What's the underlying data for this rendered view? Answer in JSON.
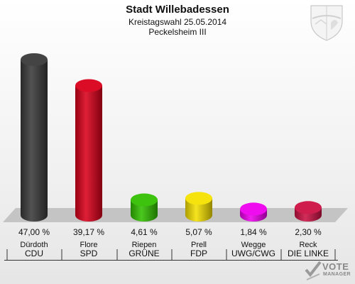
{
  "header": {
    "title": "Stadt Willebadessen",
    "subtitle_date": "Kreistagswahl 25.05.2014",
    "subtitle_district": "Peckelsheim III"
  },
  "logo": {
    "text_vote": "VOTE",
    "text_manager": "MANAGER"
  },
  "chart_data": {
    "type": "bar",
    "title": "Stadt Willebadessen",
    "ylim": [
      0,
      50
    ],
    "grid": false,
    "legend": "none",
    "categories": [
      "CDU",
      "SPD",
      "GRÜNE",
      "FDP",
      "UWG/CWG",
      "DIE LINKE"
    ],
    "candidates": [
      "Dürdoth",
      "Flore",
      "Riepen",
      "Prell",
      "Wegge",
      "Reck"
    ],
    "values": [
      47.0,
      39.17,
      4.61,
      5.07,
      1.84,
      2.3
    ],
    "value_labels": [
      "47,00 %",
      "39,17 %",
      "4,61 %",
      "5,07 %",
      "1,84 %",
      "2,30 %"
    ],
    "colors": [
      "#3a3a3a",
      "#d9001b",
      "#33c000",
      "#f5e000",
      "#ee00ee",
      "#cc1144"
    ]
  }
}
